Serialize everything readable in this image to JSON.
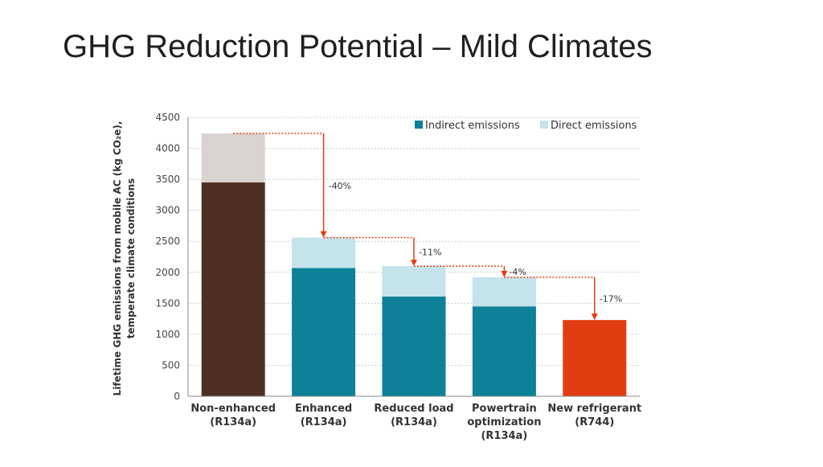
{
  "slide": {
    "title": "GHG Reduction Potential – Mild Climates"
  },
  "chart_data": {
    "type": "bar",
    "stacked": true,
    "categories": [
      [
        "Non-enhanced",
        "(R134a)"
      ],
      [
        "Enhanced",
        "(R134a)"
      ],
      [
        "Reduced load",
        "(R134a)"
      ],
      [
        "Powertrain",
        "optimization",
        "(R134a)"
      ],
      [
        "New refrigerant",
        "(R744)"
      ]
    ],
    "series": [
      {
        "name": "Indirect emissions",
        "values": [
          3450,
          2070,
          1610,
          1450,
          1230
        ]
      },
      {
        "name": "Direct emissions",
        "values": [
          790,
          490,
          490,
          470,
          0
        ]
      }
    ],
    "bar_colors": [
      {
        "indirect": "#4e2f26",
        "direct": "#d9d3d1"
      },
      {
        "indirect": "#0e8199",
        "direct": "#c4e3ea"
      },
      {
        "indirect": "#0e8199",
        "direct": "#c4e3ea"
      },
      {
        "indirect": "#0e8199",
        "direct": "#c4e3ea"
      },
      {
        "indirect": "#e23d10",
        "direct": "#c4e3ea"
      }
    ],
    "legend_colors": {
      "Indirect emissions": "#0e8199",
      "Direct emissions": "#c4e3ea"
    },
    "legend_position": "top-right",
    "ylabel": [
      "Lifetime GHG emissions from mobile AC (kg CO₂e),",
      "temperate climate conditions"
    ],
    "ylim": [
      0,
      4500
    ],
    "yticks": [
      0,
      500,
      1000,
      1500,
      2000,
      2500,
      3000,
      3500,
      4000,
      4500
    ],
    "grid": "horizontal-dotted",
    "annotations": [
      "-40%",
      "-11%",
      "-4%",
      "-17%"
    ],
    "arrow_color": "#e23d10"
  }
}
